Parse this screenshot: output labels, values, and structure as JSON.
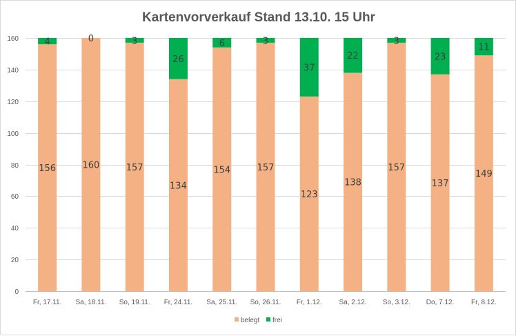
{
  "chart_data": {
    "type": "bar",
    "stacked": true,
    "title": "Kartenvorverkauf Stand 13.10. 15 Uhr",
    "categories": [
      "Fr, 17.11.",
      "Sa, 18.11.",
      "So, 19.11.",
      "Fr, 24.11.",
      "Sa, 25.11.",
      "So, 26.11.",
      "Fr, 1.12.",
      "Sa, 2.12.",
      "So, 3.12.",
      "Do, 7.12.",
      "Fr, 8.12."
    ],
    "series": [
      {
        "name": "belegt",
        "color": "#f4b183",
        "values": [
          156,
          160,
          157,
          134,
          154,
          157,
          123,
          138,
          157,
          137,
          149
        ]
      },
      {
        "name": "frei",
        "color": "#00b050",
        "values": [
          4,
          0,
          3,
          26,
          6,
          3,
          37,
          22,
          3,
          23,
          11
        ]
      }
    ],
    "ylim": [
      0,
      160
    ],
    "yticks": [
      0,
      20,
      40,
      60,
      80,
      100,
      120,
      140,
      160
    ],
    "grid": true,
    "legend": "bottom"
  }
}
